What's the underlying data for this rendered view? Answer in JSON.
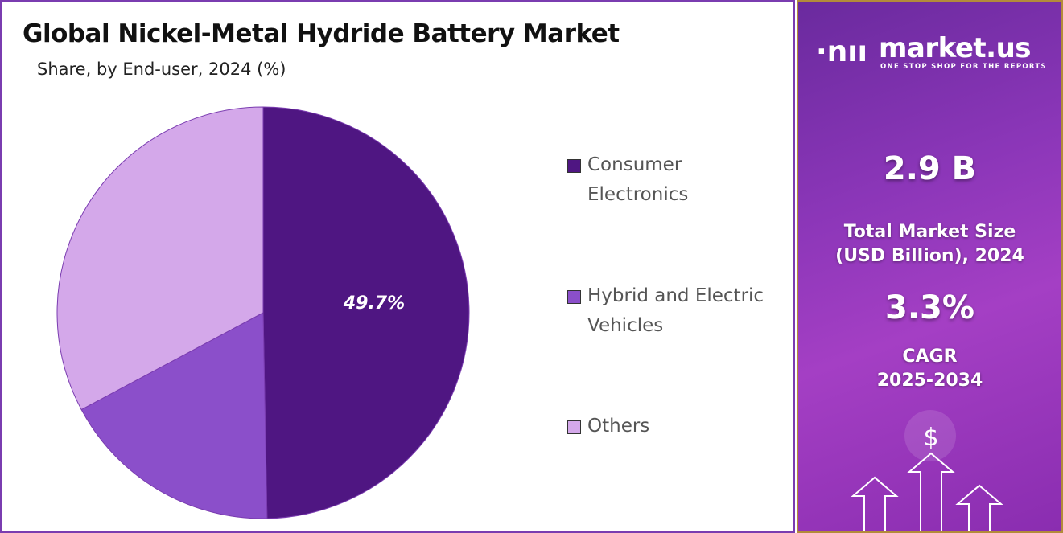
{
  "chart_data": {
    "type": "pie",
    "title": "Global Nickel-Metal Hydride Battery Market",
    "subtitle": "Share, by End-user, 2024 (%)",
    "categories": [
      "Consumer Electronics",
      "Hybrid and Electric Vehicles",
      "Others"
    ],
    "values": [
      49.7,
      17.5,
      32.8
    ],
    "data_labels": [
      "49.7%",
      "",
      ""
    ],
    "colors": [
      "#4f1682",
      "#8b4fca",
      "#d4a8ea"
    ],
    "legend_position": "right",
    "start_angle": "top, clockwise"
  },
  "sidebar": {
    "logo_name": "market.us",
    "logo_tagline": "ONE STOP SHOP FOR THE REPORTS",
    "market_size_value": "2.9 B",
    "market_size_label_1": "Total Market Size",
    "market_size_label_2": "(USD Billion), 2024",
    "cagr_value": "3.3%",
    "cagr_label_1": "CAGR",
    "cagr_label_2": "2025-2034",
    "dollar_symbol": "$"
  }
}
